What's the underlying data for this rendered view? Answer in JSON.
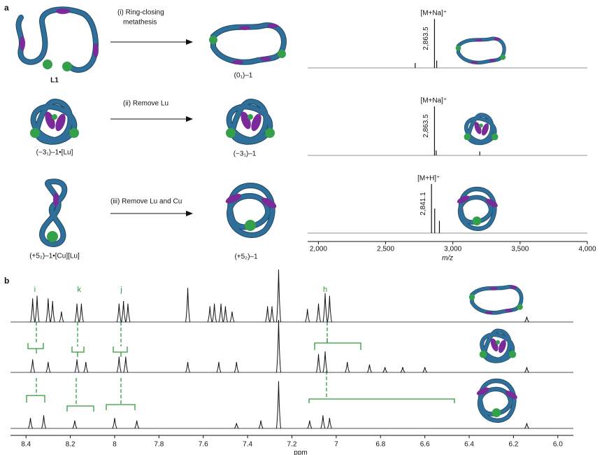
{
  "panel_a": {
    "label": "a",
    "rows": [
      {
        "start_label": "L1",
        "reaction": [
          "(i) Ring-closing",
          "metathesis"
        ],
        "product_label": "(0₁)–1"
      },
      {
        "start_label": "(−3₁)–1•[Lu]",
        "reaction": [
          "(ii) Remove Lu"
        ],
        "product_label": "(−3₁)–1"
      },
      {
        "start_label": "(+5₂)–1•[Cu][Lu]",
        "reaction": [
          "(iii) Remove Lu and Cu"
        ],
        "product_label": "(+5₂)–1"
      }
    ],
    "mass_spectra": {
      "xlim": [
        1920,
        4000
      ],
      "xticks": [
        {
          "value": 2000,
          "label": "2,000"
        },
        {
          "value": 2500,
          "label": "2,500"
        },
        {
          "value": 3000,
          "label": "3,000"
        },
        {
          "value": 3500,
          "label": "3,500"
        },
        {
          "value": 4000,
          "label": "4,000"
        }
      ],
      "xlabel": "m/z",
      "traces": [
        {
          "ion": "[M+Na]⁺",
          "peak_label": {
            "value": 2863.5,
            "label": "2,863.5"
          },
          "peaks": [
            2863.5,
            2880,
            2720
          ],
          "intensities": [
            1,
            0.15,
            0.1
          ]
        },
        {
          "ion": "[M+Na]⁺",
          "peak_label": {
            "value": 2863.5,
            "label": "2,863.5"
          },
          "peaks": [
            2863.5,
            2876,
            3200
          ],
          "intensities": [
            1,
            0.1,
            0.08
          ]
        },
        {
          "ion": "[M+H]⁺",
          "peak_label": {
            "value": 2841.1,
            "label": "2,841.1"
          },
          "peaks": [
            2841.1,
            2865,
            2900
          ],
          "intensities": [
            1,
            0.5,
            0.25
          ]
        }
      ]
    }
  },
  "panel_b": {
    "label": "b",
    "xlabel": "ppm",
    "xlim": [
      8.47,
      5.93
    ],
    "xticks": [
      8.4,
      8.2,
      8.0,
      7.8,
      7.6,
      7.4,
      7.2,
      7.0,
      6.8,
      6.6,
      6.4,
      6.2,
      {
        "value": 6,
        "label": "6.0"
      }
    ],
    "assignments": [
      {
        "letter": "i",
        "ppm": 8.36
      },
      {
        "letter": "k",
        "ppm": 8.16
      },
      {
        "letter": "j",
        "ppm": 7.97
      },
      {
        "letter": "h",
        "ppm": 7.05
      }
    ],
    "traces": [
      {
        "peaks": [
          8.37,
          8.35,
          8.3,
          8.28,
          8.24,
          8.17,
          8.15,
          7.98,
          7.96,
          7.94,
          7.67,
          7.57,
          7.55,
          7.52,
          7.5,
          7.47,
          7.31,
          7.29,
          7.26,
          7.13,
          7.08,
          7.05,
          7.03,
          6.14
        ],
        "intensities": [
          0.45,
          0.5,
          0.45,
          0.4,
          0.2,
          0.35,
          0.35,
          0.35,
          0.4,
          0.35,
          0.65,
          0.3,
          0.35,
          0.35,
          0.3,
          0.2,
          0.3,
          0.3,
          1,
          0.25,
          0.35,
          0.55,
          0.5,
          0.1
        ]
      },
      {
        "peaks": [
          8.37,
          8.3,
          8.17,
          8.13,
          7.98,
          7.95,
          7.67,
          7.53,
          7.45,
          7.26,
          7.08,
          7.05,
          6.95,
          6.85,
          6.78,
          6.7,
          6.6,
          6.14
        ],
        "intensities": [
          0.25,
          0.2,
          0.25,
          0.2,
          0.3,
          0.3,
          0.2,
          0.2,
          0.2,
          1,
          0.35,
          0.4,
          0.2,
          0.15,
          0.1,
          0.1,
          0.1,
          0.1
        ]
      },
      {
        "peaks": [
          8.38,
          8.32,
          8.18,
          8.0,
          7.9,
          7.45,
          7.34,
          7.26,
          7.12,
          7.06,
          7.03,
          6.14
        ],
        "intensities": [
          0.2,
          0.25,
          0.15,
          0.2,
          0.15,
          0.1,
          0.15,
          0.9,
          0.15,
          0.25,
          0.2,
          0.1
        ]
      }
    ]
  }
}
